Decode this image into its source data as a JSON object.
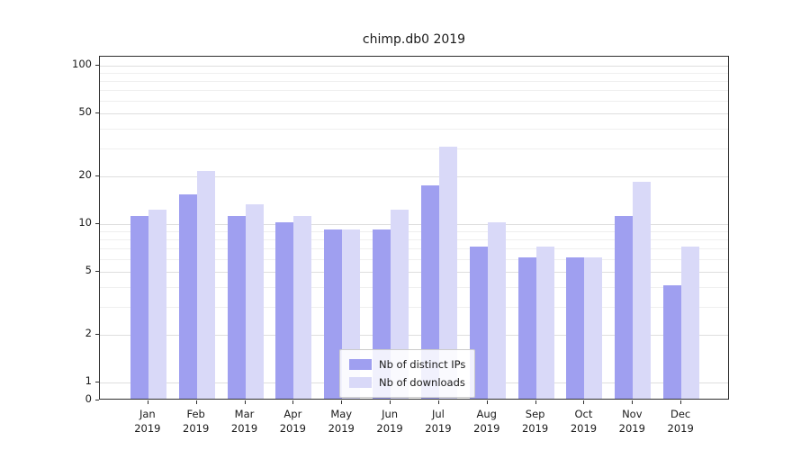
{
  "chart_data": {
    "type": "bar",
    "title": "chimp.db0 2019",
    "categories": [
      "Jan",
      "Feb",
      "Mar",
      "Apr",
      "May",
      "Jun",
      "Jul",
      "Aug",
      "Sep",
      "Oct",
      "Nov",
      "Dec"
    ],
    "category_year": "2019",
    "series": [
      {
        "name": "Nb of distinct IPs",
        "color": "#9f9ff0",
        "values": [
          11,
          15,
          11,
          10,
          9,
          9,
          17,
          7,
          6,
          6,
          11,
          4
        ]
      },
      {
        "name": "Nb of downloads",
        "color": "#d9d9f8",
        "values": [
          12,
          21,
          13,
          11,
          9,
          12,
          30,
          10,
          7,
          6,
          18,
          7
        ]
      }
    ],
    "yscale": "symlog",
    "ylim": [
      0,
      110
    ],
    "y_major_ticks": [
      100,
      50,
      20,
      10,
      5,
      2,
      1,
      0
    ],
    "y_minor_ticks": [
      3,
      4,
      6,
      7,
      8,
      9,
      30,
      40,
      60,
      70,
      80,
      90
    ],
    "grid": true,
    "legend_position": "lower center"
  }
}
